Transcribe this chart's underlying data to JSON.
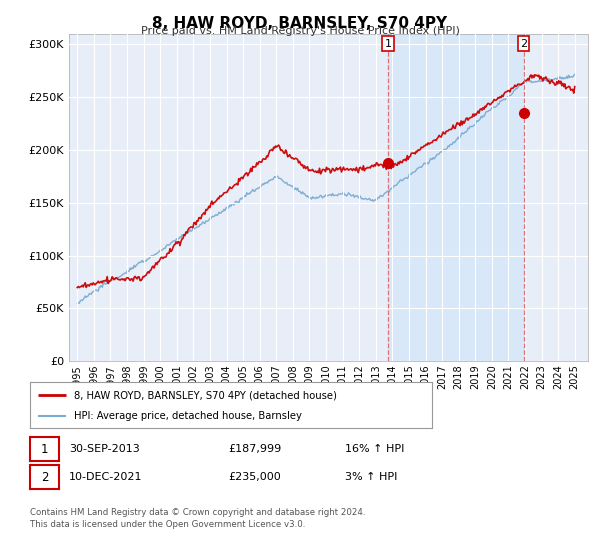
{
  "title": "8, HAW ROYD, BARNSLEY, S70 4PY",
  "subtitle": "Price paid vs. HM Land Registry's House Price Index (HPI)",
  "background_color": "#ffffff",
  "plot_bg_color": "#e8eef8",
  "grid_color": "#ffffff",
  "ylim": [
    0,
    310000
  ],
  "yticks": [
    0,
    50000,
    100000,
    150000,
    200000,
    250000,
    300000
  ],
  "ytick_labels": [
    "£0",
    "£50K",
    "£100K",
    "£150K",
    "£200K",
    "£250K",
    "£300K"
  ],
  "x_start_year": 1995,
  "x_end_year": 2025,
  "marker1_year": 2013.75,
  "marker1_value": 187999,
  "marker2_year": 2021.92,
  "marker2_value": 235000,
  "legend_entry1": "8, HAW ROYD, BARNSLEY, S70 4PY (detached house)",
  "legend_entry2": "HPI: Average price, detached house, Barnsley",
  "table_row1": [
    "1",
    "30-SEP-2013",
    "£187,999",
    "16% ↑ HPI"
  ],
  "table_row2": [
    "2",
    "10-DEC-2021",
    "£235,000",
    "3% ↑ HPI"
  ],
  "footer": "Contains HM Land Registry data © Crown copyright and database right 2024.\nThis data is licensed under the Open Government Licence v3.0.",
  "red_color": "#cc0000",
  "blue_color": "#7aaad0",
  "dashed_line_color": "#dd6666",
  "span_color": "#d8e8f8"
}
